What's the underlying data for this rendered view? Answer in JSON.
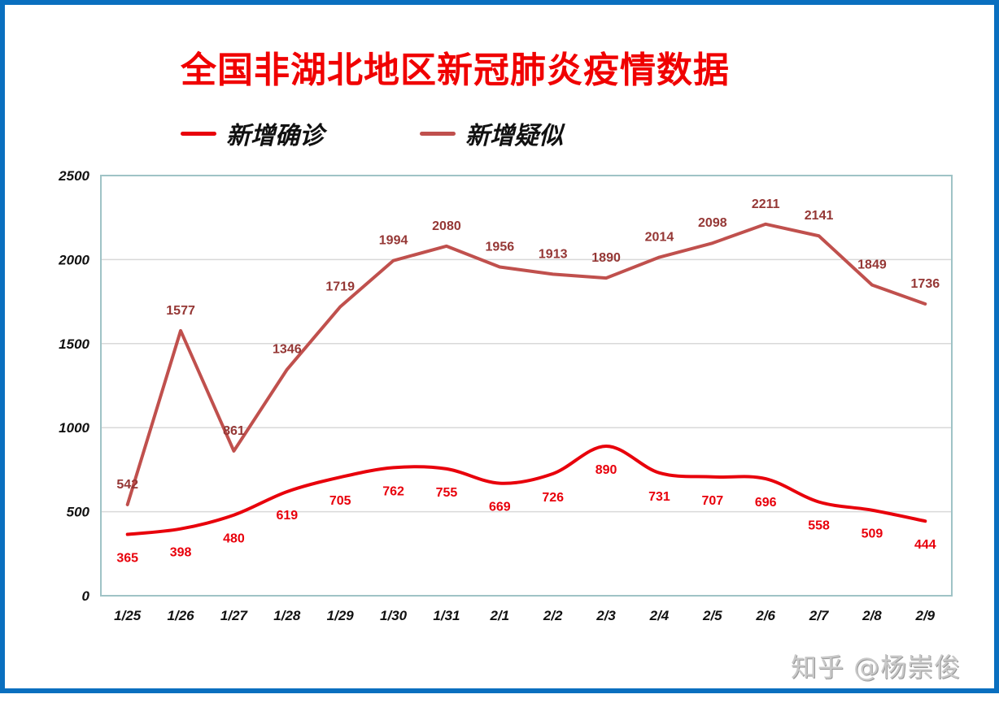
{
  "watermark": "知乎 @杨崇俊",
  "chart_data": {
    "type": "line",
    "title": "全国非湖北地区新冠肺炎疫情数据",
    "categories": [
      "1/25",
      "1/26",
      "1/27",
      "1/28",
      "1/29",
      "1/30",
      "1/31",
      "2/1",
      "2/2",
      "2/3",
      "2/4",
      "2/5",
      "2/6",
      "2/7",
      "2/8",
      "2/9"
    ],
    "yticks": [
      "0",
      "500",
      "1000",
      "1500",
      "2000",
      "2500"
    ],
    "ylim": [
      0,
      2500
    ],
    "grid": true,
    "legend_position": "top-left",
    "series": [
      {
        "name": "新增确诊",
        "color": "#e8000b",
        "label_color": "#e8000b",
        "smooth": true,
        "values": [
          365,
          398,
          480,
          619,
          705,
          762,
          755,
          669,
          726,
          890,
          731,
          707,
          696,
          558,
          509,
          444
        ]
      },
      {
        "name": "新增疑似",
        "color": "#c0504d",
        "label_color": "#953735",
        "smooth": false,
        "values": [
          542,
          1577,
          861,
          1346,
          1719,
          1994,
          2080,
          1956,
          1913,
          1890,
          2014,
          2098,
          2211,
          2141,
          1849,
          1736
        ]
      }
    ]
  }
}
